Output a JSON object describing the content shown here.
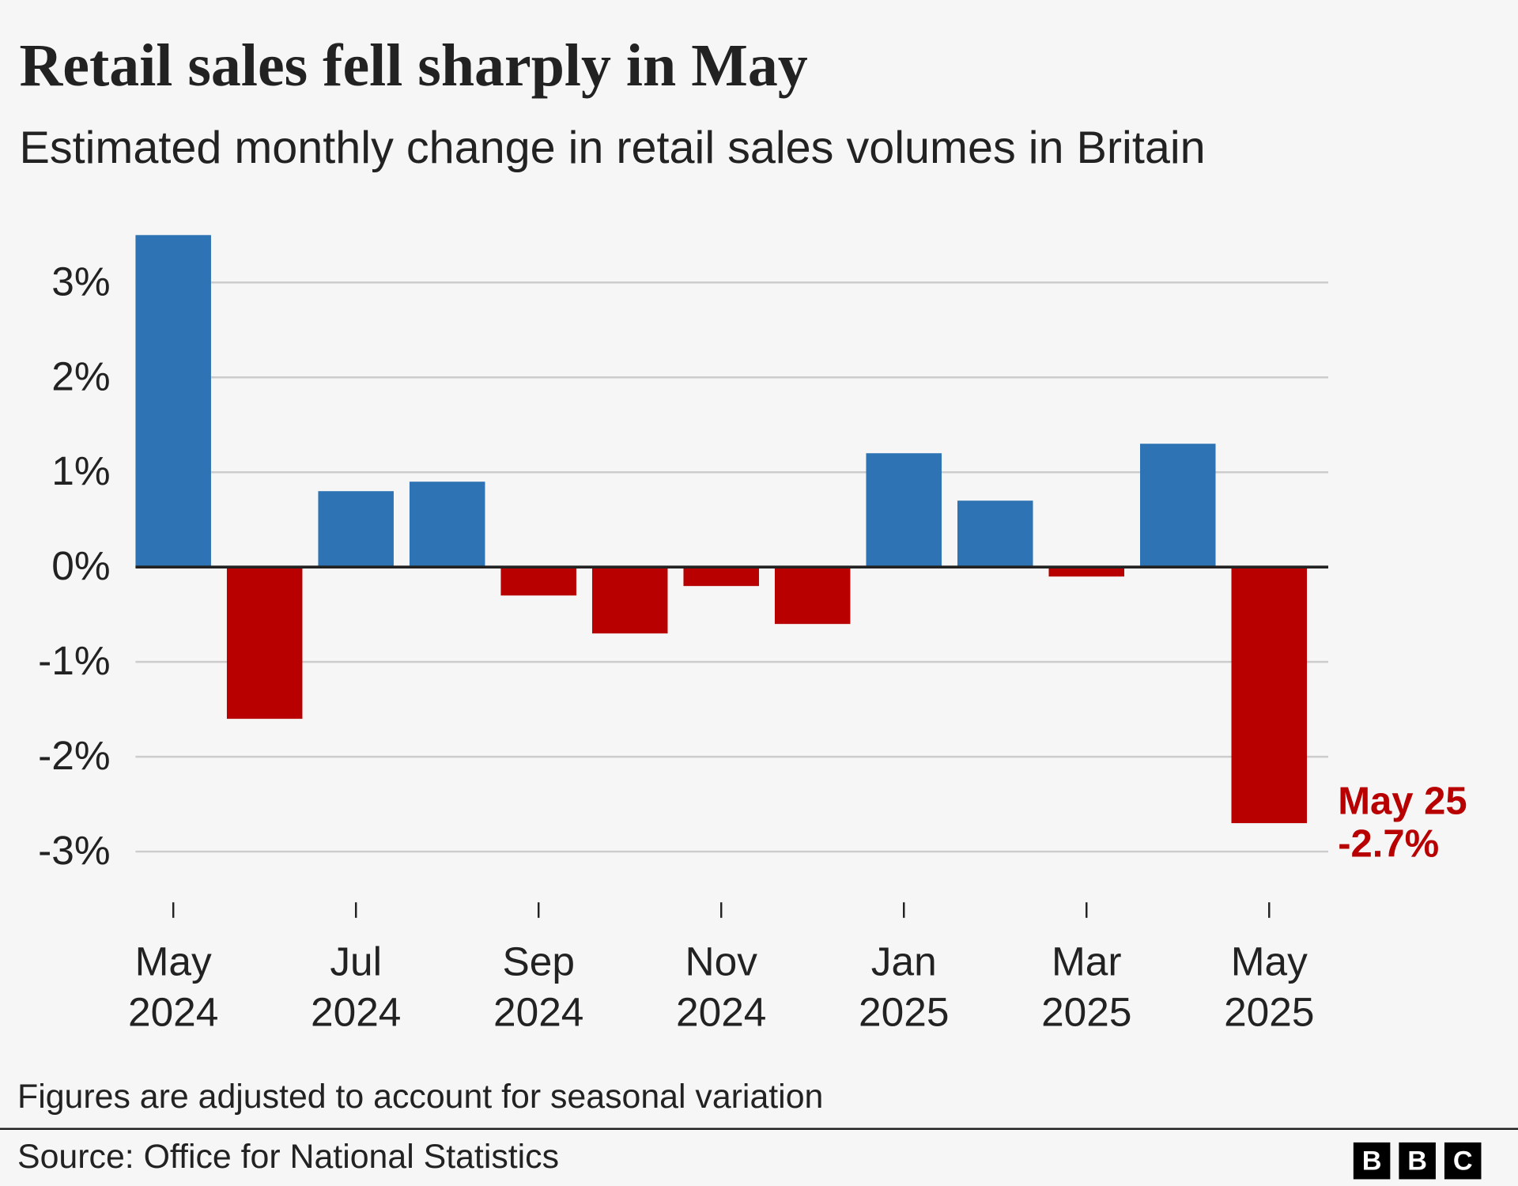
{
  "chart_data": {
    "type": "bar",
    "title": "Retail sales fell sharply in May",
    "subtitle": "Estimated monthly change in retail sales volumes in Britain",
    "categories": [
      "May 2024",
      null,
      "Jul 2024",
      null,
      "Sep 2024",
      null,
      "Nov 2024",
      null,
      "Jan 2025",
      null,
      "Mar 2025",
      null,
      "May 2025"
    ],
    "values": [
      3.5,
      -1.6,
      0.8,
      0.9,
      -0.3,
      -0.7,
      -0.2,
      -0.6,
      1.2,
      0.7,
      -0.1,
      1.3,
      -2.7
    ],
    "value_labels": [
      null,
      null,
      null,
      null,
      null,
      null,
      null,
      null,
      null,
      null,
      null,
      null,
      "-2.7%"
    ],
    "annotation": "May 25",
    "positive_color": "#2e73b4",
    "negative_color": "#b80000",
    "ylim": [
      -3.3,
      3.6
    ],
    "yticks": [
      {
        "value": -3,
        "label": "-3%"
      },
      {
        "value": -2,
        "label": "-2%"
      },
      {
        "value": -1,
        "label": "-1%"
      },
      {
        "value": 0,
        "label": "0%"
      },
      {
        "value": 1,
        "label": "1%"
      },
      {
        "value": 2,
        "label": "2%"
      },
      {
        "value": 3,
        "label": "3%"
      }
    ],
    "grid": true,
    "note": "Figures are adjusted to account for seasonal variation",
    "source": "Source: Office for National Statistics",
    "logo": [
      "B",
      "B",
      "C"
    ]
  }
}
